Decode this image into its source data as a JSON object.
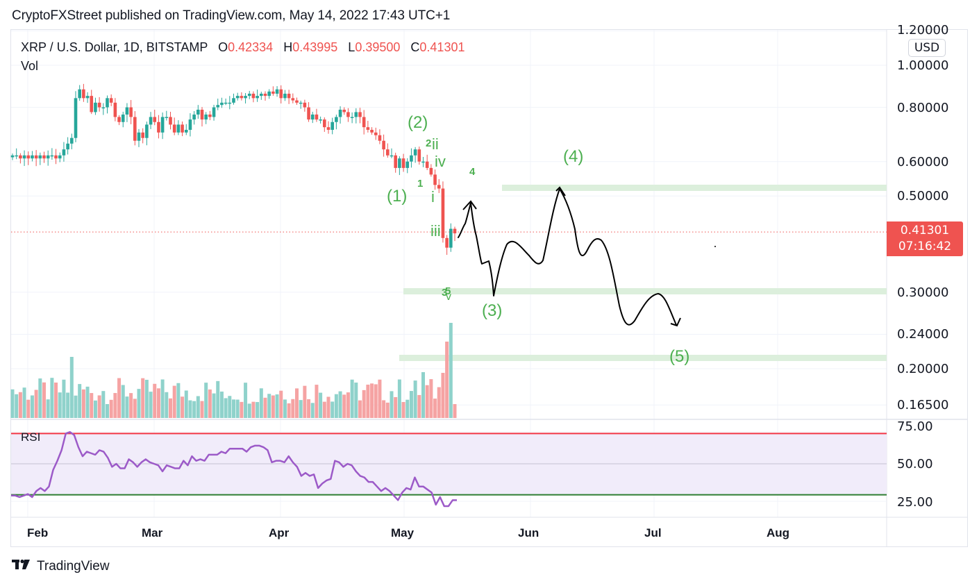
{
  "header": {
    "published_line": "CryptoFXStreet published on TradingView.com, May 14, 2022 17:43 UTC+1"
  },
  "legend": {
    "symbol": "XRP / U.S. Dollar, 1D, BITSTAMP",
    "open_label": "O",
    "open": "0.42334",
    "high_label": "H",
    "high": "0.43995",
    "low_label": "L",
    "low": "0.39500",
    "close_label": "C",
    "close": "0.41301",
    "vol_label": "Vol"
  },
  "price_axis": {
    "currency": "USD",
    "ticks": [
      "1.20000",
      "1.00000",
      "0.80000",
      "0.60000",
      "0.50000",
      "0.30000",
      "0.24000",
      "0.20000",
      "0.16500"
    ],
    "last_price": "0.41301",
    "countdown": "07:16:42"
  },
  "rsi": {
    "label": "RSI",
    "ticks": [
      "75.00",
      "50.00",
      "25.00"
    ]
  },
  "time_axis": {
    "months": [
      "Feb",
      "Mar",
      "Apr",
      "May",
      "Jun",
      "Jul",
      "Aug"
    ]
  },
  "annotations": {
    "wave_major": [
      "(1)",
      "(2)",
      "(3)",
      "(4)",
      "(5)"
    ],
    "wave_minor": [
      "1",
      "2",
      "4",
      "3",
      "5"
    ],
    "wave_roman": [
      "i",
      "ii",
      "iii",
      "iv",
      "v"
    ]
  },
  "footer": {
    "brand": "TradingView"
  },
  "colors": {
    "up": "#26a69a",
    "down": "#ef5350",
    "vol_up": "#8fd2cb",
    "vol_down": "#f5a3a3",
    "rsi_line": "#9c5ac8",
    "rsi_upper": "#f23645",
    "rsi_lower": "#2e7d32",
    "rsi_band": "#f1ecfa",
    "zone": "#dcefdc",
    "wave_label": "#4caf50"
  },
  "chart_data": {
    "type": "candlestick",
    "title": "XRP / U.S. Dollar, 1D, BITSTAMP",
    "xlabel": "",
    "ylabel": "USD",
    "scale": "log",
    "ylim": [
      0.15,
      1.25
    ],
    "x_ticks": [
      "Feb",
      "Mar",
      "Apr",
      "May",
      "Jun",
      "Jul",
      "Aug"
    ],
    "y_ticks": [
      1.2,
      1.0,
      0.8,
      0.6,
      0.5,
      0.3,
      0.24,
      0.2,
      0.165
    ],
    "last_ohlc": {
      "date": "2022-05-14",
      "open": 0.42334,
      "high": 0.43995,
      "low": 0.395,
      "close": 0.41301
    },
    "closes_approx": [
      0.62,
      0.62,
      0.61,
      0.62,
      0.61,
      0.62,
      0.61,
      0.62,
      0.61,
      0.62,
      0.62,
      0.61,
      0.62,
      0.64,
      0.66,
      0.68,
      0.84,
      0.88,
      0.84,
      0.85,
      0.78,
      0.82,
      0.8,
      0.8,
      0.84,
      0.82,
      0.76,
      0.74,
      0.77,
      0.8,
      0.76,
      0.67,
      0.7,
      0.68,
      0.73,
      0.76,
      0.74,
      0.7,
      0.76,
      0.76,
      0.73,
      0.7,
      0.73,
      0.7,
      0.71,
      0.75,
      0.77,
      0.79,
      0.75,
      0.77,
      0.76,
      0.8,
      0.81,
      0.82,
      0.82,
      0.82,
      0.84,
      0.85,
      0.84,
      0.85,
      0.86,
      0.84,
      0.85,
      0.86,
      0.85,
      0.87,
      0.86,
      0.88,
      0.84,
      0.86,
      0.84,
      0.83,
      0.82,
      0.82,
      0.8,
      0.75,
      0.77,
      0.75,
      0.75,
      0.72,
      0.71,
      0.74,
      0.76,
      0.79,
      0.78,
      0.76,
      0.76,
      0.78,
      0.76,
      0.72,
      0.71,
      0.7,
      0.69,
      0.67,
      0.64,
      0.62,
      0.62,
      0.58,
      0.61,
      0.58,
      0.6,
      0.62,
      0.64,
      0.6,
      0.6,
      0.58,
      0.56,
      0.53,
      0.52,
      0.4,
      0.38,
      0.42,
      0.41
    ],
    "rsi_approx": [
      29,
      29,
      28,
      29,
      30,
      28,
      32,
      34,
      32,
      35,
      46,
      52,
      59,
      70,
      71,
      69,
      61,
      55,
      58,
      57,
      56,
      59,
      58,
      54,
      48,
      50,
      47,
      47,
      53,
      51,
      48,
      51,
      53,
      51,
      50,
      49,
      45,
      49,
      48,
      47,
      47,
      52,
      49,
      55,
      52,
      53,
      52,
      56,
      56,
      56,
      58,
      57,
      60,
      60,
      60,
      60,
      58,
      61,
      62,
      62,
      61,
      59,
      51,
      52,
      52,
      51,
      55,
      51,
      48,
      42,
      44,
      42,
      43,
      34,
      37,
      39,
      40,
      52,
      51,
      48,
      50,
      49,
      45,
      42,
      41,
      38,
      38,
      35,
      32,
      34,
      32,
      29,
      26,
      31,
      34,
      33,
      41,
      35,
      35,
      33,
      31,
      23,
      28,
      22,
      22,
      26,
      26
    ],
    "support_resistance_zones": [
      0.52,
      0.3,
      0.21
    ],
    "projection": "Elliott wave (3) low ~0.30, (4) high ~0.52, (5) target ~0.21"
  }
}
